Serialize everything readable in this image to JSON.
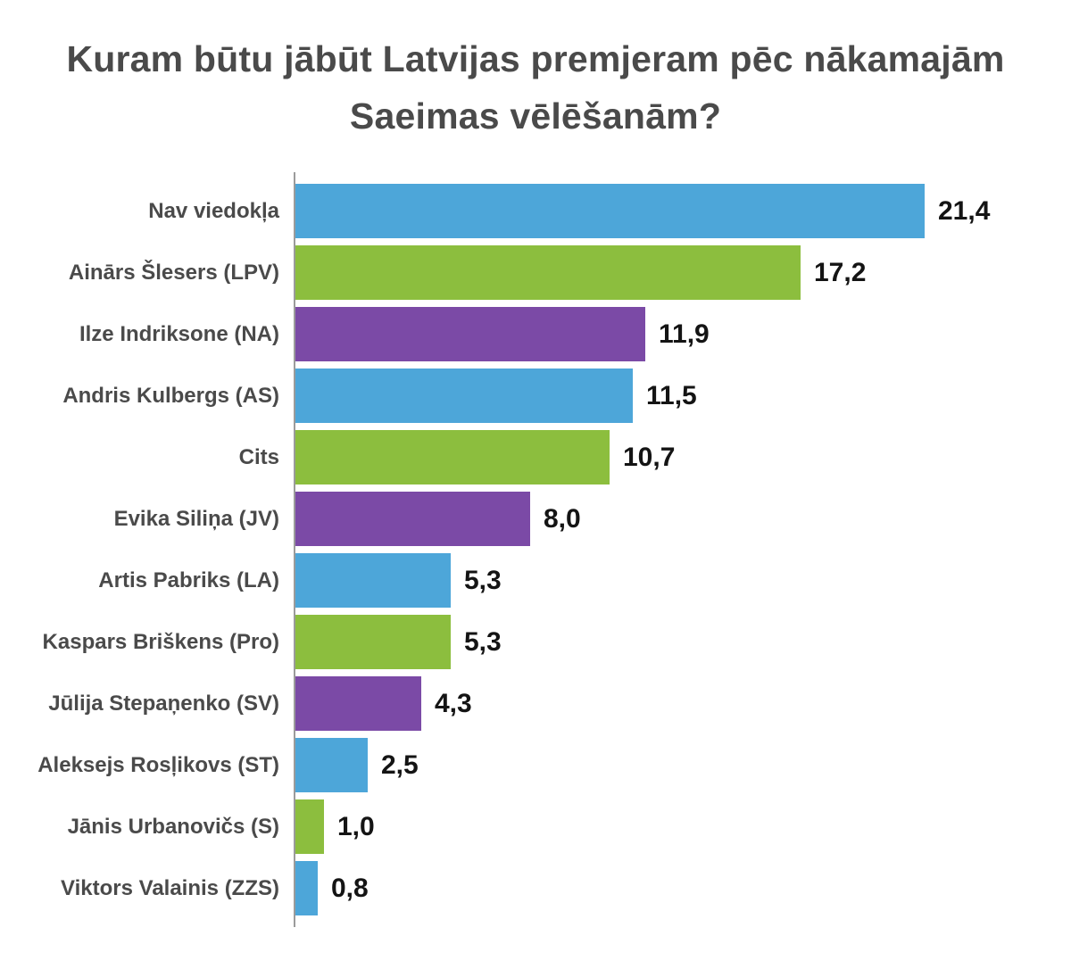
{
  "title": "Kuram būtu jābūt Latvijas premjeram pēc nākamajām Saeimas vēlēšanām?",
  "chart_data": {
    "type": "bar",
    "orientation": "horizontal",
    "title": "Kuram būtu jābūt Latvijas premjeram pēc nākamajām Saeimas vēlēšanām?",
    "xlabel": "",
    "ylabel": "",
    "xlim": [
      0,
      22
    ],
    "grid": false,
    "legend": false,
    "value_format": "decimal-comma",
    "categories": [
      "Nav viedokļa",
      "Ainārs Šlesers (LPV)",
      "Ilze Indriksone (NA)",
      "Andris Kulbergs (AS)",
      "Cits",
      "Evika Siliņa (JV)",
      "Artis Pabriks (LA)",
      "Kaspars Briškens (Pro)",
      "Jūlija Stepaņenko (SV)",
      "Aleksejs Rosļikovs (ST)",
      "Jānis Urbanovičs (S)",
      "Viktors Valainis (ZZS)"
    ],
    "values": [
      21.4,
      17.2,
      11.9,
      11.5,
      10.7,
      8.0,
      5.3,
      5.3,
      4.3,
      2.5,
      1.0,
      0.8
    ],
    "value_labels": [
      "21,4",
      "17,2",
      "11,9",
      "11,5",
      "10,7",
      "8,0",
      "5,3",
      "5,3",
      "4,3",
      "2,5",
      "1,0",
      "0,8"
    ],
    "bar_colors": [
      "#4DA6D9",
      "#8CBE3E",
      "#7B4AA6",
      "#4DA6D9",
      "#8CBE3E",
      "#7B4AA6",
      "#4DA6D9",
      "#8CBE3E",
      "#7B4AA6",
      "#4DA6D9",
      "#8CBE3E",
      "#4DA6D9"
    ],
    "palette": {
      "blue": "#4DA6D9",
      "green": "#8CBE3E",
      "purple": "#7B4AA6"
    },
    "axis_color": "#9b9b9b",
    "label_color": "#4a4a4a",
    "value_color": "#141414"
  }
}
